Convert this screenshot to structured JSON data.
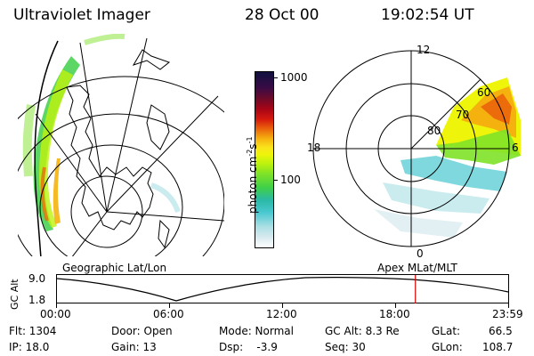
{
  "header": {
    "instrument": "Ultraviolet Imager",
    "date": "28 Oct 00",
    "time": "19:02:54 UT"
  },
  "colorbar": {
    "label": "photon cm",
    "label_sup1": "-2",
    "label_s": "s",
    "label_sup2": "-1",
    "ticks": [
      "1000",
      "100"
    ],
    "colors": [
      "#ffffff",
      "#d7e9ee",
      "#a9dfe4",
      "#48c8d0",
      "#2bb9a6",
      "#3fcf4a",
      "#7fe227",
      "#bff20e",
      "#eef50a",
      "#fae31c",
      "#f5b20f",
      "#ec6c0c",
      "#d61a0e",
      "#a70516",
      "#6c0a2a",
      "#3a0b45",
      "#101040"
    ]
  },
  "polar_plot": {
    "labels": {
      "top": "12",
      "bottom": "0",
      "left": "18",
      "right": "6"
    },
    "rings": [
      "80",
      "70",
      "60"
    ]
  },
  "timeline": {
    "left_title": "Geographic Lat/Lon",
    "right_title": "Apex  MLat/MLT",
    "axis_label": "GC Alt",
    "y_ticks": {
      "top": "9.0",
      "bottom": "1.8"
    },
    "x_ticks": [
      "00:00",
      "06:00",
      "12:00",
      "18:00",
      "23:59"
    ],
    "current_time_marker_color": "#dd0000",
    "current_time_hours": 19.05
  },
  "info": {
    "flt": "Flt: 1304",
    "ip": "IP: 18.0",
    "door": "Door: Open",
    "gain": "Gain: 13",
    "mode": "Mode: Normal",
    "dsp": "Dsp:    -3.9",
    "gc_alt": "GC Alt: 8.3 Re",
    "seq": "Seq: 30",
    "glat_label": "GLat:",
    "glat_value": "66.5",
    "glon_label": "GLon:",
    "glon_value": "108.7"
  }
}
